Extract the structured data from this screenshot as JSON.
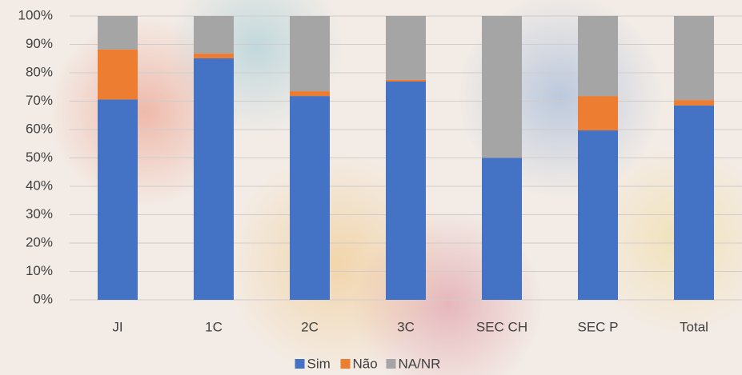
{
  "chart_data": {
    "type": "stacked_bar",
    "categories": [
      "JI",
      "1C",
      "2C",
      "3C",
      "SEC CH",
      "SEC P",
      "Total"
    ],
    "series": [
      {
        "name": "Sim",
        "color": "#4472c4",
        "values": [
          70.6,
          85.1,
          71.8,
          76.9,
          50,
          59.7,
          68.5
        ]
      },
      {
        "name": "Não",
        "color": "#ed7d31",
        "values": [
          17.6,
          1.7,
          1.7,
          0.6,
          0,
          12.1,
          1.9
        ]
      },
      {
        "name": "NA/NR",
        "color": "#a5a5a5",
        "values": [
          11.8,
          13.2,
          26.5,
          22.5,
          50,
          28.2,
          29.6
        ]
      }
    ],
    "ylim": [
      0,
      100
    ],
    "yticks": [
      {
        "value": 0,
        "label": "0%"
      },
      {
        "value": 10,
        "label": "10%"
      },
      {
        "value": 20,
        "label": "20%"
      },
      {
        "value": 30,
        "label": "30%"
      },
      {
        "value": 40,
        "label": "40%"
      },
      {
        "value": 50,
        "label": "50%"
      },
      {
        "value": 60,
        "label": "60%"
      },
      {
        "value": 70,
        "label": "70%"
      },
      {
        "value": 80,
        "label": "80%"
      },
      {
        "value": 90,
        "label": "90%"
      },
      {
        "value": 100,
        "label": "100%"
      }
    ],
    "grid": true,
    "legend": "bottom"
  }
}
